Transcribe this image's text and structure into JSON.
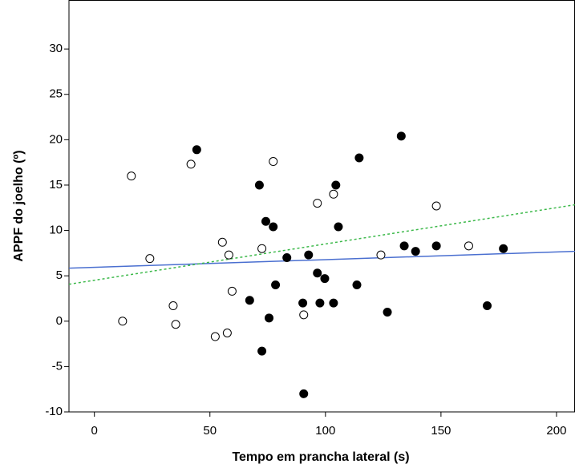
{
  "chart_data": {
    "type": "scatter",
    "x_label": "Tempo em prancha lateral (s)",
    "y_label": "APPF do joelho (º)",
    "xlim": [
      -11,
      208
    ],
    "ylim": [
      -10,
      35.4
    ],
    "xticks": [
      0,
      50,
      100,
      150,
      200
    ],
    "yticks": [
      -10,
      -5,
      0,
      5,
      10,
      15,
      20,
      25,
      30
    ],
    "series": [
      {
        "marker": "open",
        "color": "#000000",
        "x": [
          16,
          41.8,
          77.4,
          24,
          12.2,
          34.1,
          35.2,
          52.3,
          57.5,
          55.4,
          58.2,
          59.6,
          72.5,
          90.6,
          96.5,
          103.5,
          124,
          148,
          162
        ],
        "values": [
          16.0,
          17.3,
          17.6,
          6.9,
          0,
          1.7,
          -0.35,
          -1.7,
          -1.3,
          8.7,
          7.3,
          3.3,
          8.0,
          0.7,
          13.0,
          14.0,
          7.3,
          12.7,
          8.3
        ]
      },
      {
        "marker": "filled",
        "color": "#000000",
        "x": [
          44.3,
          71.4,
          74.2,
          77.4,
          78.4,
          67.2,
          75.6,
          72.5,
          90.6,
          90.2,
          83.3,
          92.7,
          96.5,
          99.7,
          97.6,
          103.5,
          104.5,
          105.6,
          114.6,
          113.6,
          126.8,
          132.8,
          134.1,
          139,
          148,
          170,
          177
        ],
        "values": [
          18.9,
          15.0,
          11.0,
          10.4,
          4.0,
          2.3,
          0.35,
          -3.3,
          -8.0,
          2.0,
          7.0,
          7.3,
          5.3,
          4.7,
          2.0,
          2.0,
          15.0,
          10.4,
          18.0,
          4.0,
          1.0,
          20.4,
          8.3,
          7.7,
          8.3,
          1.7,
          8.0
        ]
      }
    ],
    "fit_lines": [
      {
        "style": "solid",
        "color": "#4a6fd0",
        "x": [
          -11,
          208
        ],
        "values": [
          5.84,
          7.7
        ]
      },
      {
        "style": "dotted",
        "color": "#3cb94a",
        "x": [
          -11,
          208
        ],
        "values": [
          4.07,
          12.83
        ]
      }
    ]
  }
}
